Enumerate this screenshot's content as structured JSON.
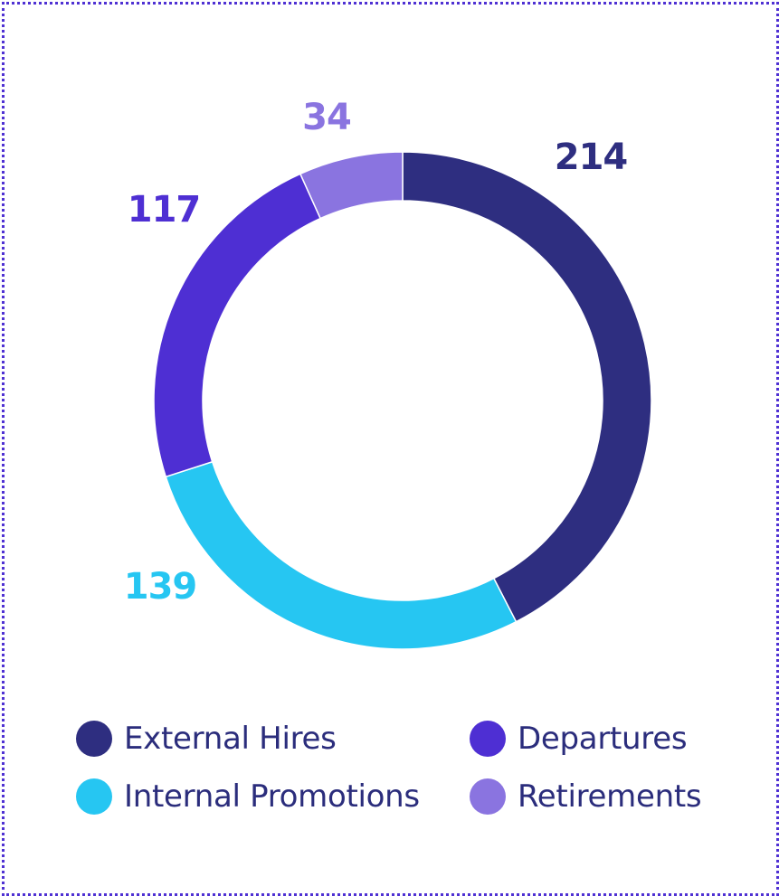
{
  "chart_data": {
    "type": "pie",
    "categories": [
      "External Hires",
      "Internal Promotions",
      "Departures",
      "Retirements"
    ],
    "values": [
      214,
      139,
      117,
      34
    ],
    "colors": [
      "#2e2e80",
      "#26c6f2",
      "#4e2fd3",
      "#8a74e0"
    ],
    "legend": {
      "position": "bottom"
    }
  },
  "colors": {
    "border": "#4f31d3",
    "legend_text": "#2b2d7c"
  }
}
